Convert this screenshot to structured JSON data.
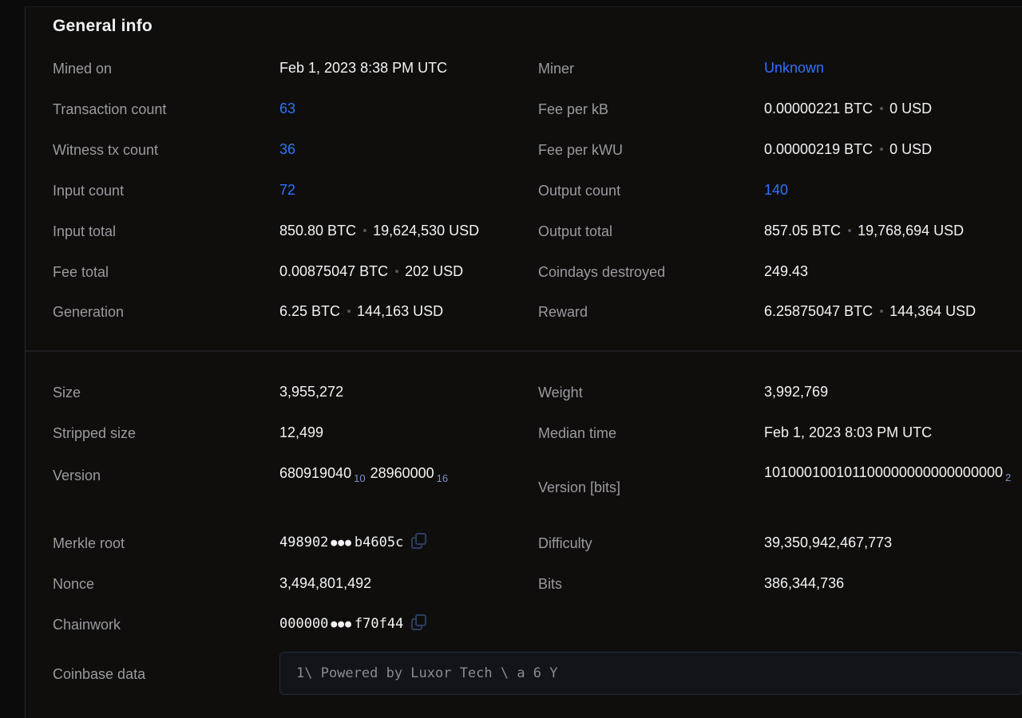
{
  "title": "General info",
  "general": {
    "mined_on": {
      "label": "Mined on",
      "value": "Feb 1, 2023 8:38 PM UTC"
    },
    "miner": {
      "label": "Miner",
      "value": "Unknown"
    },
    "tx_count": {
      "label": "Transaction count",
      "value": "63"
    },
    "fee_per_kb": {
      "label": "Fee per kB",
      "btc": "0.00000221 BTC",
      "usd": "0 USD"
    },
    "witness_tx": {
      "label": "Witness tx count",
      "value": "36"
    },
    "fee_per_kwu": {
      "label": "Fee per kWU",
      "btc": "0.00000219 BTC",
      "usd": "0 USD"
    },
    "input_count": {
      "label": "Input count",
      "value": "72"
    },
    "output_count": {
      "label": "Output count",
      "value": "140"
    },
    "input_total": {
      "label": "Input total",
      "btc": "850.80 BTC",
      "usd": "19,624,530 USD"
    },
    "output_total": {
      "label": "Output total",
      "btc": "857.05 BTC",
      "usd": "19,768,694 USD"
    },
    "fee_total": {
      "label": "Fee total",
      "btc": "0.00875047 BTC",
      "usd": "202 USD"
    },
    "coindays": {
      "label": "Coindays destroyed",
      "value": "249.43"
    },
    "generation": {
      "label": "Generation",
      "btc": "6.25 BTC",
      "usd": "144,163 USD"
    },
    "reward": {
      "label": "Reward",
      "btc": "6.25875047 BTC",
      "usd": "144,364 USD"
    }
  },
  "details": {
    "size": {
      "label": "Size",
      "value": "3,955,272"
    },
    "weight": {
      "label": "Weight",
      "value": "3,992,769"
    },
    "stripped": {
      "label": "Stripped size",
      "value": "12,499"
    },
    "median": {
      "label": "Median time",
      "value": "Feb 1, 2023 8:03 PM UTC"
    },
    "version": {
      "label": "Version",
      "dec": "680919040",
      "dec_base": "10",
      "hex": "28960000",
      "hex_base": "16"
    },
    "version_bits": {
      "label": "Version [bits]",
      "value": "101000100101100000000000000000",
      "base": "2"
    },
    "merkle": {
      "label": "Merkle root",
      "start": "498902",
      "end": "b4605c"
    },
    "difficulty": {
      "label": "Difficulty",
      "value": "39,350,942,467,773"
    },
    "nonce": {
      "label": "Nonce",
      "value": "3,494,801,492"
    },
    "bits": {
      "label": "Bits",
      "value": "386,344,736"
    },
    "chainwork": {
      "label": "Chainwork",
      "start": "000000",
      "end": "f70f44"
    },
    "coinbase": {
      "label": "Coinbase data",
      "value": "1\\ Powered by Luxor Tech \\ a 6 Y"
    }
  },
  "colors": {
    "link": "#2f73ff",
    "background": "#0f0e0c"
  },
  "icons": [
    "copy-icon"
  ]
}
